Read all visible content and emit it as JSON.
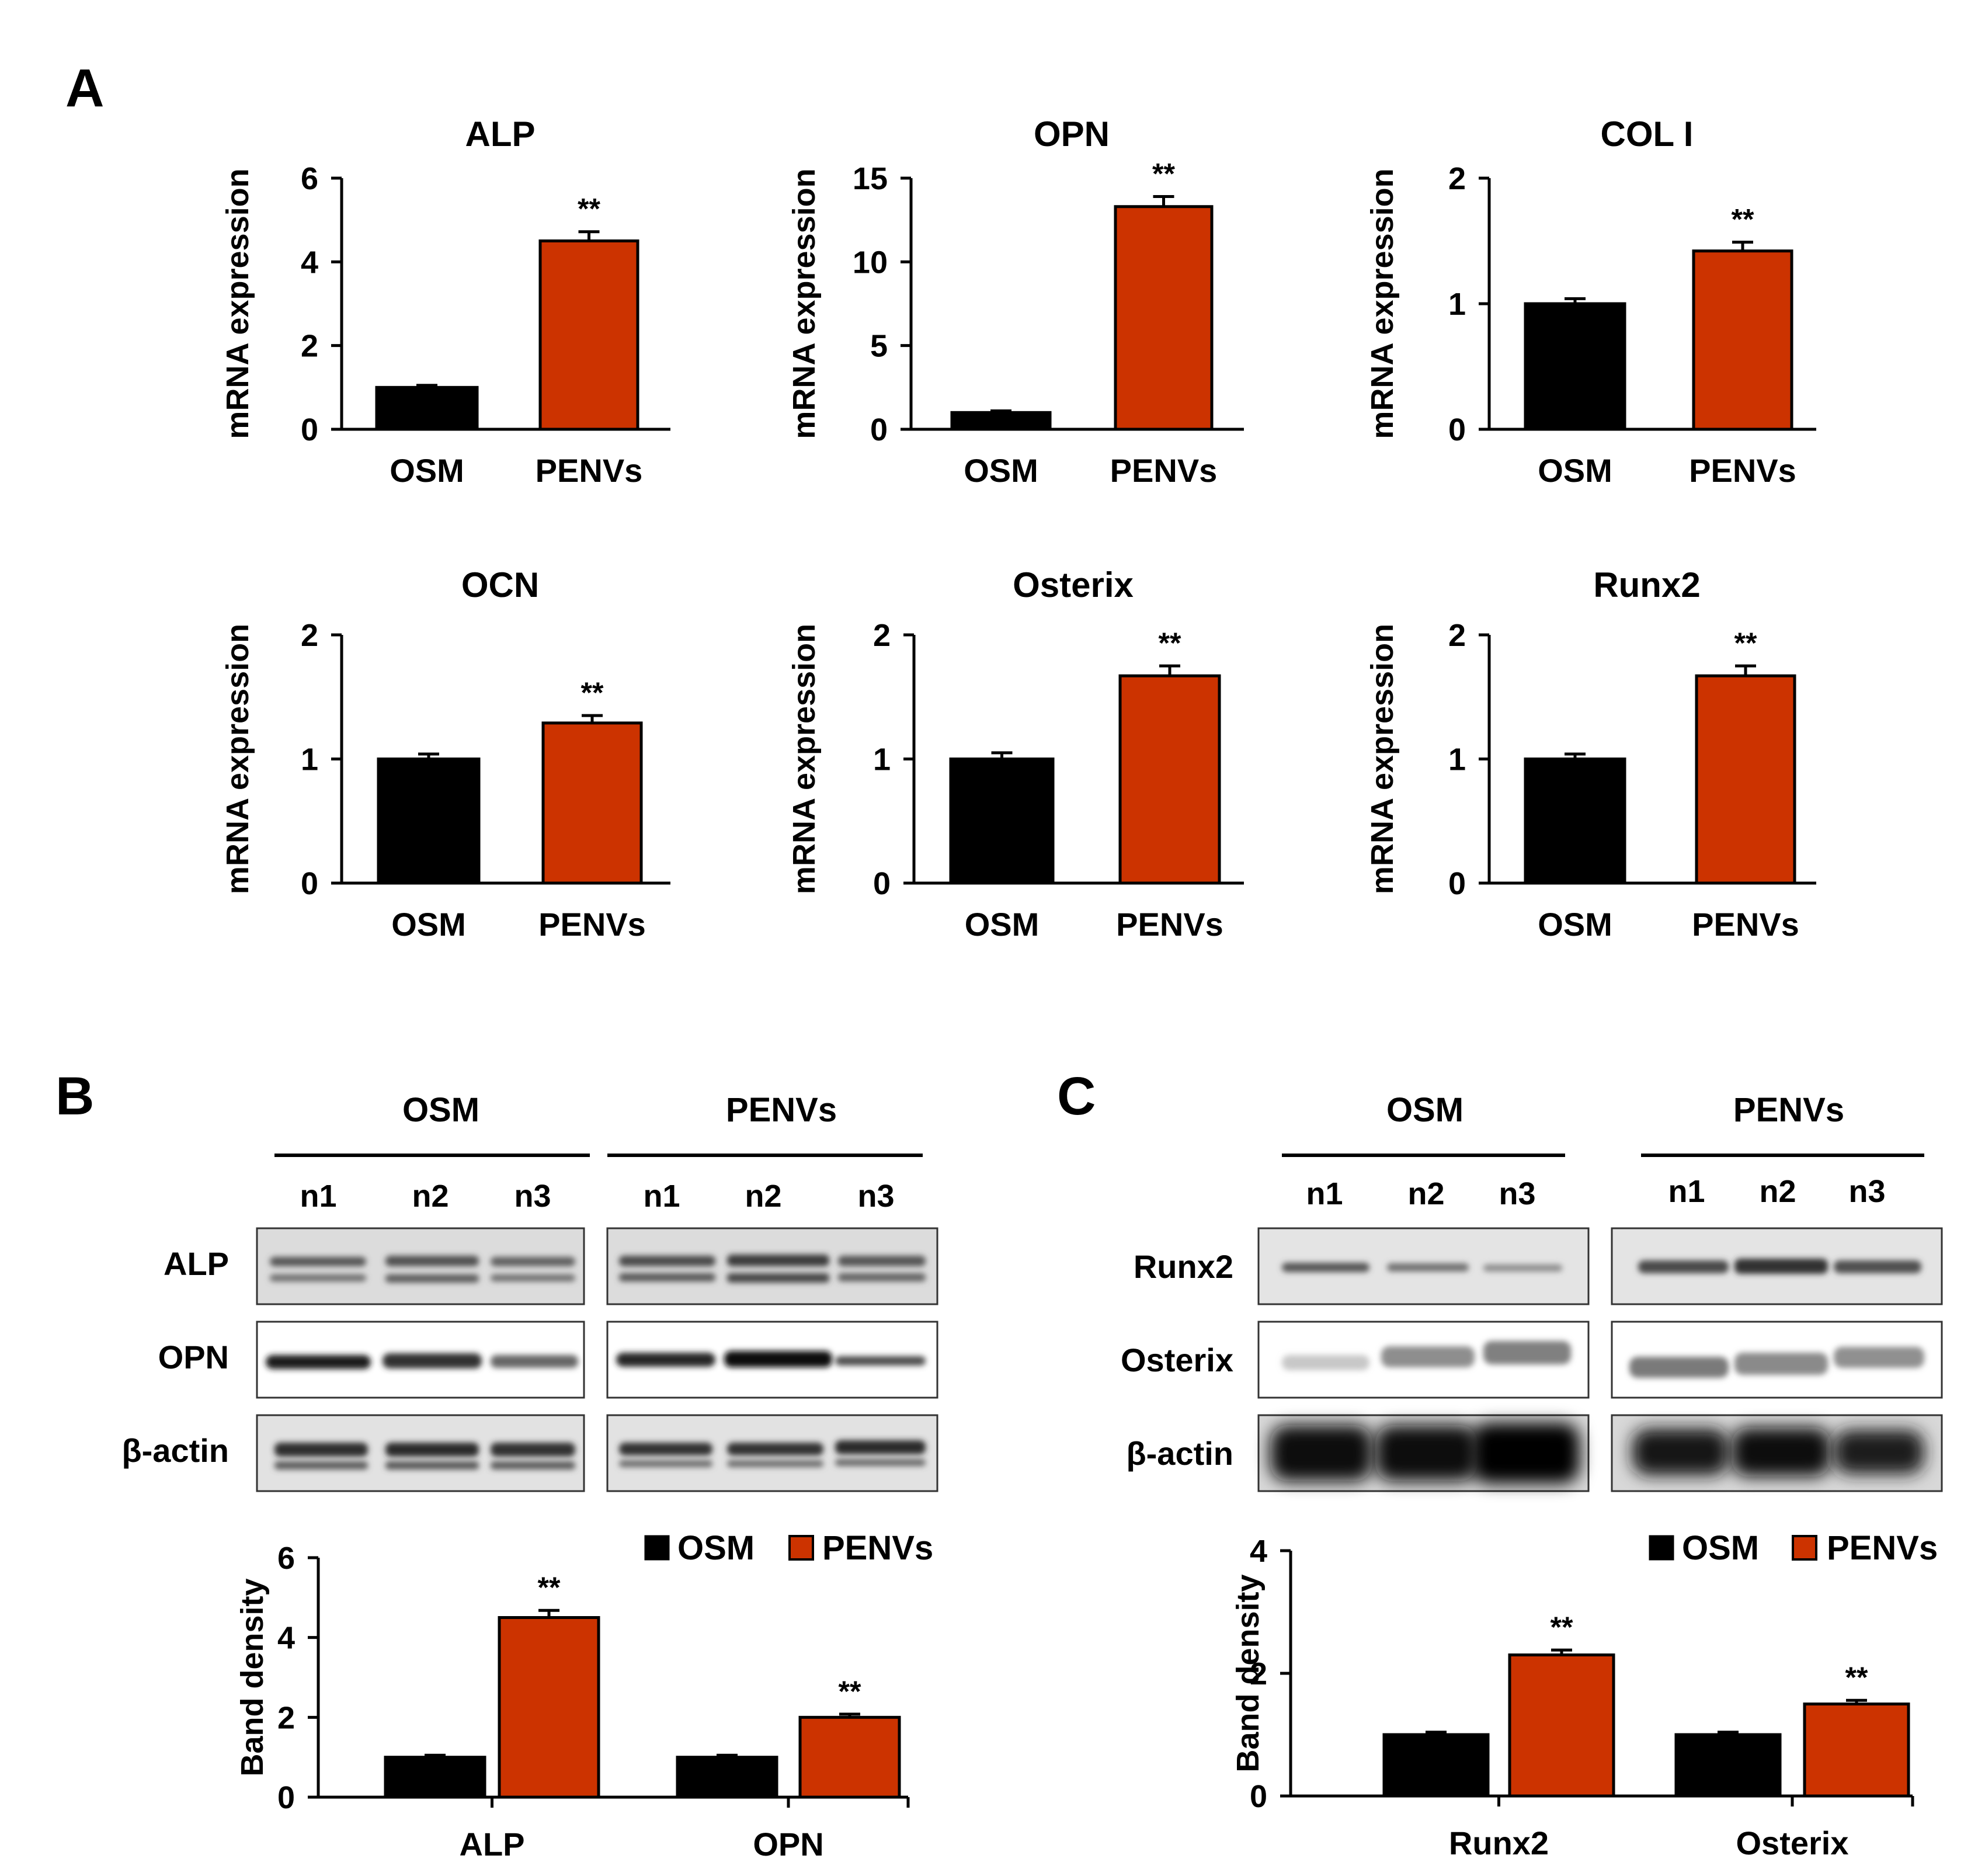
{
  "panels": {
    "a": "A",
    "b": "B",
    "c": "C"
  },
  "colors": {
    "osm": "#000000",
    "penvs": "#cc3300",
    "axis": "#000000"
  },
  "chart_data": [
    {
      "id": "alp",
      "type": "bar",
      "title": "ALP",
      "ylabel": "mRNA expression",
      "categories": [
        "OSM",
        "PENVs"
      ],
      "values": [
        1.0,
        4.5
      ],
      "errors": [
        0.05,
        0.22
      ],
      "ylim": [
        0,
        6
      ],
      "yticks": [
        0,
        2,
        4,
        6
      ],
      "significance": [
        "",
        "**"
      ]
    },
    {
      "id": "opn",
      "type": "bar",
      "title": "OPN",
      "ylabel": "mRNA expression",
      "categories": [
        "OSM",
        "PENVs"
      ],
      "values": [
        1.0,
        13.3
      ],
      "errors": [
        0.1,
        0.6
      ],
      "ylim": [
        0,
        15
      ],
      "yticks": [
        0,
        5,
        10,
        15
      ],
      "significance": [
        "",
        "**"
      ]
    },
    {
      "id": "col1",
      "type": "bar",
      "title": "COL I",
      "ylabel": "mRNA expression",
      "categories": [
        "OSM",
        "PENVs"
      ],
      "values": [
        1.0,
        1.42
      ],
      "errors": [
        0.04,
        0.07
      ],
      "ylim": [
        0,
        2
      ],
      "yticks": [
        0,
        1,
        2
      ],
      "significance": [
        "",
        "**"
      ]
    },
    {
      "id": "ocn",
      "type": "bar",
      "title": "OCN",
      "ylabel": "mRNA expression",
      "categories": [
        "OSM",
        "PENVs"
      ],
      "values": [
        1.0,
        1.29
      ],
      "errors": [
        0.04,
        0.06
      ],
      "ylim": [
        0,
        2
      ],
      "yticks": [
        0,
        1,
        2
      ],
      "significance": [
        "",
        "**"
      ]
    },
    {
      "id": "osterix",
      "type": "bar",
      "title": "Osterix",
      "ylabel": "mRNA expression",
      "categories": [
        "OSM",
        "PENVs"
      ],
      "values": [
        1.0,
        1.67
      ],
      "errors": [
        0.05,
        0.08
      ],
      "ylim": [
        0,
        2
      ],
      "yticks": [
        0,
        1,
        2
      ],
      "significance": [
        "",
        "**"
      ]
    },
    {
      "id": "runx2",
      "type": "bar",
      "title": "Runx2",
      "ylabel": "mRNA expression",
      "categories": [
        "OSM",
        "PENVs"
      ],
      "values": [
        1.0,
        1.67
      ],
      "errors": [
        0.04,
        0.08
      ],
      "ylim": [
        0,
        2
      ],
      "yticks": [
        0,
        1,
        2
      ],
      "significance": [
        "",
        "**"
      ]
    },
    {
      "id": "band-b",
      "type": "bar",
      "title": "",
      "ylabel": "Band density",
      "categories": [
        "ALP",
        "OPN"
      ],
      "series": [
        {
          "name": "OSM",
          "values": [
            1.0,
            1.0
          ],
          "errors": [
            0.05,
            0.05
          ]
        },
        {
          "name": "PENVs",
          "values": [
            4.5,
            2.0
          ],
          "errors": [
            0.18,
            0.08
          ]
        }
      ],
      "ylim": [
        0,
        6
      ],
      "yticks": [
        0,
        2,
        4,
        6
      ],
      "significance": [
        "**",
        "**"
      ],
      "legend": "top-right"
    },
    {
      "id": "band-c",
      "type": "bar",
      "title": "",
      "ylabel": "Band density",
      "categories": [
        "Runx2",
        "Osterix"
      ],
      "series": [
        {
          "name": "OSM",
          "values": [
            1.0,
            1.0
          ],
          "errors": [
            0.04,
            0.04
          ]
        },
        {
          "name": "PENVs",
          "values": [
            2.3,
            1.5
          ],
          "errors": [
            0.08,
            0.06
          ]
        }
      ],
      "ylim": [
        0,
        4
      ],
      "yticks": [
        0,
        2,
        4
      ],
      "significance": [
        "**",
        "**"
      ],
      "legend": "top-right"
    }
  ],
  "blots": {
    "b": {
      "groups": [
        "OSM",
        "PENVs"
      ],
      "lanes": [
        "n1",
        "n2",
        "n3"
      ],
      "rows": [
        "ALP",
        "OPN",
        "β-actin"
      ]
    },
    "c": {
      "groups": [
        "OSM",
        "PENVs"
      ],
      "lanes": [
        "n1",
        "n2",
        "n3"
      ],
      "rows": [
        "Runx2",
        "Osterix",
        "β-actin"
      ]
    }
  }
}
